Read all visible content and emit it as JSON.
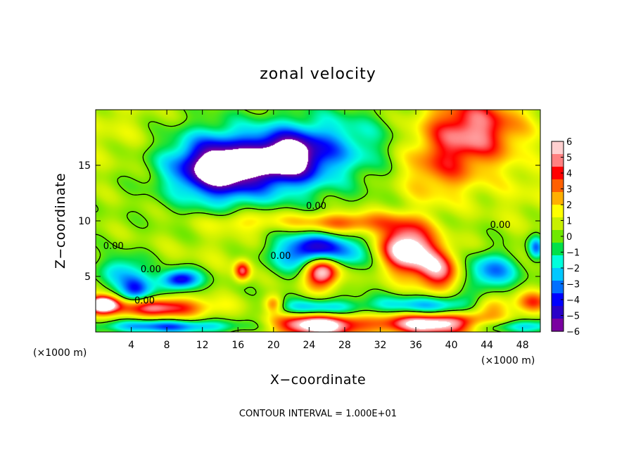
{
  "chart_data": {
    "type": "heatmap",
    "title": "zonal velocity",
    "xlabel": "X−coordinate",
    "ylabel": "Z−coordinate",
    "x_unit_left": "(×1000 m)",
    "x_unit_right": "(×1000 m)",
    "xlim": [
      0,
      50
    ],
    "ylim": [
      0,
      20
    ],
    "x_ticks": [
      4,
      8,
      12,
      16,
      20,
      24,
      28,
      32,
      36,
      40,
      44,
      48
    ],
    "y_ticks": [
      5,
      10,
      15
    ],
    "colorbar": {
      "min": -6,
      "max": 6,
      "ticks": [
        6,
        5,
        4,
        3,
        2,
        1,
        0,
        -1,
        -2,
        -3,
        -4,
        -5,
        -6
      ],
      "tick_labels": [
        "6",
        "5",
        "4",
        "3",
        "2",
        "1",
        "0",
        "−1",
        "−2",
        "−3",
        "−4",
        "−5",
        "−6"
      ],
      "colors": [
        "#7a00a0",
        "#2a00c8",
        "#0000ff",
        "#0070ff",
        "#00c8ff",
        "#00ffdc",
        "#00e04a",
        "#6fe800",
        "#c8f000",
        "#ffff00",
        "#ffb000",
        "#ff6000",
        "#ff0000",
        "#ff8080",
        "#ffd0d0"
      ]
    },
    "contour_labels": [
      {
        "x": 24.8,
        "y": 11.3,
        "text": "0.00"
      },
      {
        "x": 45.5,
        "y": 9.6,
        "text": "0.00"
      },
      {
        "x": 2.0,
        "y": 7.7,
        "text": "0.00"
      },
      {
        "x": 6.2,
        "y": 5.6,
        "text": "0.00"
      },
      {
        "x": 20.8,
        "y": 6.8,
        "text": "0.00"
      },
      {
        "x": 5.5,
        "y": 2.8,
        "text": "0.00"
      }
    ],
    "features": [
      {
        "x": 13.5,
        "y": 14.7,
        "v": -5.5,
        "sx": 4.6,
        "sy": 2.6
      },
      {
        "x": 21.5,
        "y": 15.8,
        "v": -5.2,
        "sx": 3.8,
        "sy": 2.2
      },
      {
        "x": 17.5,
        "y": 15.0,
        "v": -3.6,
        "sx": 9.0,
        "sy": 3.4
      },
      {
        "x": 27.5,
        "y": 17.0,
        "v": -2.2,
        "sx": 6.0,
        "sy": 3.0
      },
      {
        "x": 42.5,
        "y": 18.3,
        "v": 4.8,
        "sx": 5.5,
        "sy": 3.2
      },
      {
        "x": 38.5,
        "y": 14.5,
        "v": 2.5,
        "sx": 4.5,
        "sy": 3.0
      },
      {
        "x": 35.0,
        "y": 7.5,
        "v": 7.0,
        "sx": 3.0,
        "sy": 2.2
      },
      {
        "x": 38.5,
        "y": 5.5,
        "v": 4.5,
        "sx": 2.5,
        "sy": 2.0
      },
      {
        "x": 25.5,
        "y": 5.6,
        "v": 8.0,
        "sx": 2.0,
        "sy": 1.5
      },
      {
        "x": 25.0,
        "y": 7.2,
        "v": -6.5,
        "sx": 4.5,
        "sy": 1.7
      },
      {
        "x": 28.0,
        "y": 9.8,
        "v": 3.6,
        "sx": 6.0,
        "sy": 1.0
      },
      {
        "x": 17.0,
        "y": 10.0,
        "v": 1.8,
        "sx": 5.0,
        "sy": 1.0
      },
      {
        "x": 16.5,
        "y": 5.5,
        "v": 4.5,
        "sx": 0.9,
        "sy": 0.9
      },
      {
        "x": 9.5,
        "y": 4.7,
        "v": -5.5,
        "sx": 2.2,
        "sy": 0.9
      },
      {
        "x": 4.5,
        "y": 3.7,
        "v": -4.5,
        "sx": 1.8,
        "sy": 1.5
      },
      {
        "x": 3.0,
        "y": 5.6,
        "v": -2.5,
        "sx": 2.5,
        "sy": 1.4
      },
      {
        "x": 44.5,
        "y": 5.4,
        "v": -3.8,
        "sx": 2.8,
        "sy": 1.6
      },
      {
        "x": 49.5,
        "y": 7.6,
        "v": -3.5,
        "sx": 0.8,
        "sy": 1.0
      },
      {
        "x": 44.5,
        "y": 2.4,
        "v": 3.0,
        "sx": 2.5,
        "sy": 1.0
      },
      {
        "x": 49.0,
        "y": 2.6,
        "v": 3.5,
        "sx": 2.0,
        "sy": 1.0
      },
      {
        "x": 25.0,
        "y": 0.8,
        "v": 7.5,
        "sx": 4.8,
        "sy": 1.3
      },
      {
        "x": 25.0,
        "y": 2.0,
        "v": -5.0,
        "sx": 5.0,
        "sy": 0.9
      },
      {
        "x": 38.0,
        "y": 0.8,
        "v": 7.0,
        "sx": 6.0,
        "sy": 1.1
      },
      {
        "x": 38.0,
        "y": 2.3,
        "v": -4.0,
        "sx": 6.5,
        "sy": 1.0
      },
      {
        "x": 6.0,
        "y": 2.2,
        "v": 5.0,
        "sx": 7.0,
        "sy": 0.9
      },
      {
        "x": 0.8,
        "y": 2.5,
        "v": 6.5,
        "sx": 1.5,
        "sy": 0.7
      },
      {
        "x": 8.0,
        "y": 0.5,
        "v": -4.0,
        "sx": 8.0,
        "sy": 0.6
      },
      {
        "x": 48.0,
        "y": 0.5,
        "v": -3.0,
        "sx": 6.0,
        "sy": 0.6
      },
      {
        "x": 20.0,
        "y": 2.5,
        "v": 3.0,
        "sx": 1.0,
        "sy": 0.8
      },
      {
        "x": 2.0,
        "y": 18.0,
        "v": 0.8,
        "sx": 5.0,
        "sy": 4.0
      },
      {
        "x": 14.0,
        "y": 7.5,
        "v": 0.5,
        "sx": 6.0,
        "sy": 2.0
      },
      {
        "x": 48.0,
        "y": 12.5,
        "v": 0.8,
        "sx": 4.0,
        "sy": 3.0
      }
    ]
  },
  "footer": {
    "contour_interval": "CONTOUR INTERVAL = 1.000E+01"
  }
}
